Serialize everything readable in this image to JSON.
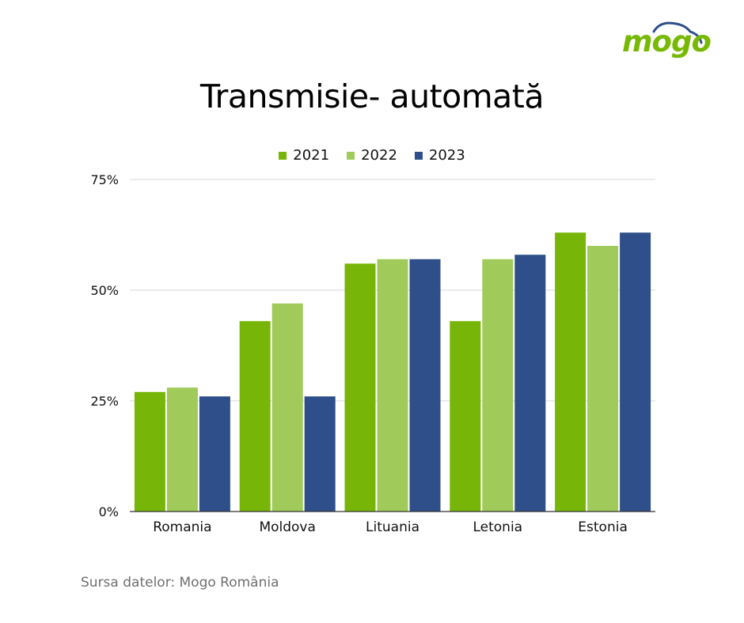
{
  "brand": {
    "name": "mogo",
    "color": "#77b900",
    "cloud_color": "#2e4f88"
  },
  "source": "Sursa datelor:  Mogo România",
  "chart_data": {
    "type": "bar",
    "title": "Transmisie- automată",
    "categories": [
      "Romania",
      "Moldova",
      "Lituania",
      "Letonia",
      "Estonia"
    ],
    "series": [
      {
        "name": "2021",
        "color": "#77b508",
        "values": [
          27,
          43,
          56,
          43,
          63
        ]
      },
      {
        "name": "2022",
        "color": "#a0ca5a",
        "values": [
          28,
          47,
          57,
          57,
          60
        ]
      },
      {
        "name": "2023",
        "color": "#2e4f8a",
        "values": [
          26,
          26,
          57,
          58,
          63
        ]
      }
    ],
    "ylim": [
      0,
      75
    ],
    "y_ticks": [
      0,
      25,
      50,
      75
    ],
    "y_tick_labels": [
      "0%",
      "25%",
      "50%",
      "75%"
    ],
    "grid": true,
    "legend_position": "top-center"
  }
}
